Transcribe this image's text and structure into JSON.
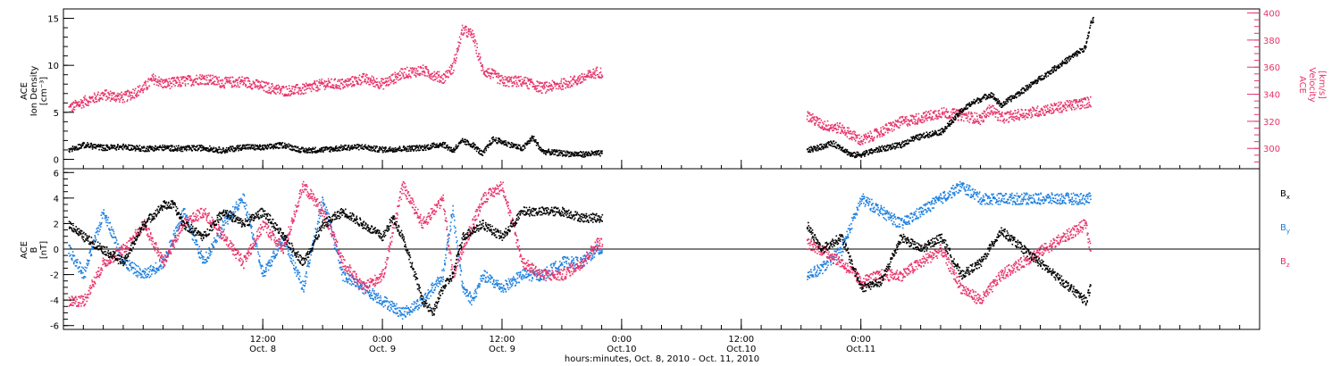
{
  "colors": {
    "axes": "#000000",
    "black_series": "#000000",
    "red_series": "#e8336a",
    "blue_series": "#1c7fe0"
  },
  "chart_data": [
    {
      "type": "scatter",
      "panel": "top",
      "ylabel_lines": [
        "ACE",
        "Ion Density",
        "[cm⁻³]"
      ],
      "ylabel_right_lines": [
        "ACE",
        "Velocity",
        "[km/s]"
      ],
      "ylim": [
        -1,
        16
      ],
      "yticks": [
        0,
        5,
        10,
        15
      ],
      "ylim_right": [
        285,
        403
      ],
      "yticks_right": [
        300,
        320,
        340,
        360,
        380,
        400
      ],
      "gap_hours": [
        46,
        66.5
      ],
      "series": [
        {
          "name": "Density",
          "axis": "left",
          "color": "#000000",
          "points": [
            [
              -7.5,
              1.1
            ],
            [
              -6,
              1.6
            ],
            [
              -4,
              1.3
            ],
            [
              -2,
              1.4
            ],
            [
              0,
              1.2
            ],
            [
              2,
              1.3
            ],
            [
              4,
              1.2
            ],
            [
              6,
              1.3
            ],
            [
              8,
              1.0
            ],
            [
              10,
              1.4
            ],
            [
              12,
              1.3
            ],
            [
              14,
              1.6
            ],
            [
              16,
              1.0
            ],
            [
              18,
              1.1
            ],
            [
              20,
              1.3
            ],
            [
              22,
              1.4
            ],
            [
              23,
              1.2
            ],
            [
              24,
              1.1
            ],
            [
              26,
              1.2
            ],
            [
              28,
              1.3
            ],
            [
              30,
              1.7
            ],
            [
              31,
              1.0
            ],
            [
              32,
              2.0
            ],
            [
              33,
              1.6
            ],
            [
              34,
              0.6
            ],
            [
              35,
              2.2
            ],
            [
              36,
              1.9
            ],
            [
              38,
              1.2
            ],
            [
              39,
              2.4
            ],
            [
              40,
              0.9
            ],
            [
              42,
              0.7
            ],
            [
              44,
              0.6
            ],
            [
              45.5,
              0.7
            ],
            [
              66.5,
              1.0
            ],
            [
              68,
              1.4
            ],
            [
              69,
              1.8
            ],
            [
              70,
              1.3
            ],
            [
              71,
              0.5
            ],
            [
              72,
              0.6
            ],
            [
              74,
              1.2
            ],
            [
              76,
              1.6
            ],
            [
              77,
              2.2
            ],
            [
              78,
              2.5
            ],
            [
              79,
              2.8
            ],
            [
              80,
              3.0
            ],
            [
              81,
              4.0
            ],
            [
              82,
              5.2
            ],
            [
              83,
              6.0
            ],
            [
              84,
              6.5
            ],
            [
              85,
              7.0
            ],
            [
              86,
              5.8
            ],
            [
              94.5,
              12.0
            ],
            [
              95,
              14.5
            ],
            [
              95.3,
              15.0
            ]
          ]
        },
        {
          "name": "Velocity",
          "axis": "right",
          "color": "#e8336a",
          "points": [
            [
              -7.5,
              330
            ],
            [
              -6,
              335
            ],
            [
              -4,
              340
            ],
            [
              -2,
              338
            ],
            [
              0,
              345
            ],
            [
              1,
              352
            ],
            [
              2,
              348
            ],
            [
              4,
              350
            ],
            [
              6,
              352
            ],
            [
              8,
              349
            ],
            [
              10,
              350
            ],
            [
              12,
              346
            ],
            [
              14,
              343
            ],
            [
              16,
              344
            ],
            [
              18,
              348
            ],
            [
              20,
              348
            ],
            [
              22,
              352
            ],
            [
              24,
              348
            ],
            [
              26,
              356
            ],
            [
              28,
              358
            ],
            [
              30,
              352
            ],
            [
              31,
              360
            ],
            [
              32,
              388
            ],
            [
              33,
              384
            ],
            [
              34,
              358
            ],
            [
              35,
              355
            ],
            [
              36,
              350
            ],
            [
              38,
              350
            ],
            [
              40,
              345
            ],
            [
              42,
              348
            ],
            [
              44,
              352
            ],
            [
              45.5,
              357
            ],
            [
              66.5,
              325
            ],
            [
              68,
              318
            ],
            [
              70,
              315
            ],
            [
              72,
              306
            ],
            [
              74,
              313
            ],
            [
              76,
              320
            ],
            [
              78,
              323
            ],
            [
              80,
              327
            ],
            [
              82,
              325
            ],
            [
              84,
              322
            ],
            [
              85,
              330
            ],
            [
              86,
              323
            ],
            [
              95,
              335
            ]
          ]
        }
      ]
    },
    {
      "type": "scatter",
      "panel": "bottom",
      "ylabel_lines": [
        "ACE",
        "B",
        "[nT]"
      ],
      "ylim": [
        -6.3,
        6.3
      ],
      "yticks": [
        -6,
        -4,
        -2,
        0,
        2,
        4,
        6
      ],
      "zero_line": true,
      "xlim_hours": [
        -8,
        112
      ],
      "xticks": [
        {
          "hour": 12,
          "label": "12:00",
          "sublabel": "Oct. 8"
        },
        {
          "hour": 24,
          "label": "0:00",
          "sublabel": "Oct. 9"
        },
        {
          "hour": 36,
          "label": "12:00",
          "sublabel": "Oct. 9"
        },
        {
          "hour": 48,
          "label": "0:00",
          "sublabel": "Oct.10"
        },
        {
          "hour": 60,
          "label": "12:00",
          "sublabel": "Oct.10"
        },
        {
          "hour": 72,
          "label": "0:00",
          "sublabel": "Oct.11"
        }
      ],
      "minor_tick_hours": 2,
      "xlabel": "hours:minutes, Oct. 8, 2010 - Oct. 11, 2010",
      "series": [
        {
          "name": "Bx",
          "base": "B",
          "sub": "x",
          "color": "#000000",
          "points": [
            [
              -7.5,
              2
            ],
            [
              -6,
              1
            ],
            [
              -4,
              0
            ],
            [
              -2,
              -1
            ],
            [
              0,
              2
            ],
            [
              2,
              3.5
            ],
            [
              3,
              3.5
            ],
            [
              4,
              2
            ],
            [
              6,
              1
            ],
            [
              8,
              3
            ],
            [
              10,
              2
            ],
            [
              12,
              3
            ],
            [
              14,
              1
            ],
            [
              16,
              -1
            ],
            [
              18,
              2
            ],
            [
              20,
              3
            ],
            [
              22,
              2
            ],
            [
              24,
              1
            ],
            [
              25,
              2.5
            ],
            [
              26,
              1
            ],
            [
              28,
              -4
            ],
            [
              29,
              -5
            ],
            [
              30,
              -3
            ],
            [
              31,
              -2
            ],
            [
              32,
              1
            ],
            [
              34,
              2
            ],
            [
              36,
              1
            ],
            [
              38,
              3
            ],
            [
              40,
              3
            ],
            [
              42,
              3
            ],
            [
              44,
              2.5
            ],
            [
              45.5,
              2.5
            ],
            [
              66.5,
              2
            ],
            [
              68,
              0
            ],
            [
              70,
              1
            ],
            [
              72,
              -3
            ],
            [
              74,
              -2.5
            ],
            [
              76,
              1
            ],
            [
              78,
              0
            ],
            [
              80,
              1
            ],
            [
              82,
              -2
            ],
            [
              84,
              -1
            ],
            [
              86,
              1.5
            ],
            [
              94.5,
              -4
            ],
            [
              95,
              -3
            ]
          ]
        },
        {
          "name": "By",
          "base": "B",
          "sub": "y",
          "color": "#1c7fe0",
          "points": [
            [
              -7.5,
              0
            ],
            [
              -6,
              -2
            ],
            [
              -4,
              3
            ],
            [
              -2,
              -1
            ],
            [
              0,
              -2
            ],
            [
              2,
              -1
            ],
            [
              4,
              3
            ],
            [
              6,
              -1
            ],
            [
              8,
              2
            ],
            [
              10,
              4
            ],
            [
              12,
              -2
            ],
            [
              14,
              1
            ],
            [
              16,
              -3
            ],
            [
              18,
              4
            ],
            [
              20,
              -2
            ],
            [
              22,
              -3
            ],
            [
              24,
              -4
            ],
            [
              26,
              -5
            ],
            [
              28,
              -4
            ],
            [
              30,
              -2
            ],
            [
              31,
              3
            ],
            [
              32,
              -3
            ],
            [
              33,
              -4
            ],
            [
              34,
              -2
            ],
            [
              36,
              -3
            ],
            [
              38,
              -2
            ],
            [
              40,
              -2
            ],
            [
              42,
              -1
            ],
            [
              44,
              -1
            ],
            [
              45.5,
              0
            ],
            [
              66.5,
              -2
            ],
            [
              68,
              -1.5
            ],
            [
              70,
              0
            ],
            [
              72,
              4
            ],
            [
              74,
              3
            ],
            [
              76,
              2
            ],
            [
              78,
              3
            ],
            [
              80,
              4
            ],
            [
              82,
              5
            ],
            [
              84,
              4
            ],
            [
              86,
              4
            ],
            [
              94.5,
              4
            ],
            [
              95,
              4
            ]
          ]
        },
        {
          "name": "Bz",
          "base": "B",
          "sub": "z",
          "color": "#e8336a",
          "points": [
            [
              -7.5,
              -4
            ],
            [
              -6,
              -4
            ],
            [
              -4,
              -1
            ],
            [
              -2,
              0
            ],
            [
              0,
              2
            ],
            [
              2,
              -1
            ],
            [
              4,
              2
            ],
            [
              6,
              3
            ],
            [
              8,
              1
            ],
            [
              10,
              -1
            ],
            [
              12,
              2
            ],
            [
              14,
              0
            ],
            [
              16,
              5
            ],
            [
              18,
              3
            ],
            [
              20,
              -1
            ],
            [
              22,
              -3
            ],
            [
              24,
              -2
            ],
            [
              26,
              5
            ],
            [
              28,
              2
            ],
            [
              30,
              4
            ],
            [
              31,
              -2
            ],
            [
              32,
              0
            ],
            [
              34,
              4
            ],
            [
              36,
              5
            ],
            [
              38,
              -1
            ],
            [
              40,
              -2
            ],
            [
              42,
              -2
            ],
            [
              44,
              -1
            ],
            [
              45.5,
              0.5
            ],
            [
              66.5,
              0.5
            ],
            [
              68,
              0
            ],
            [
              70,
              -1
            ],
            [
              72,
              -2.5
            ],
            [
              74,
              -2
            ],
            [
              76,
              -2
            ],
            [
              78,
              -1
            ],
            [
              80,
              0
            ],
            [
              82,
              -3
            ],
            [
              84,
              -4
            ],
            [
              86,
              -2
            ],
            [
              94.5,
              2
            ],
            [
              95,
              0
            ]
          ]
        }
      ]
    }
  ]
}
